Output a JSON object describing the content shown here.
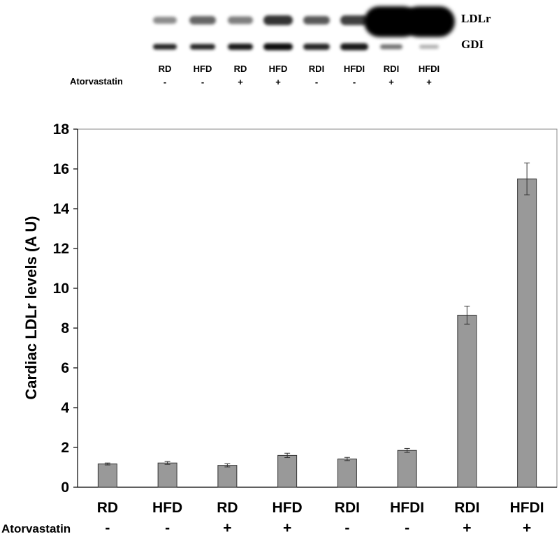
{
  "blot": {
    "band_labels": [
      "LDLr",
      "GDI"
    ],
    "lane_labels": [
      "RD",
      "HFD",
      "RD",
      "HFD",
      "RDI",
      "HFDI",
      "RDI",
      "HFDI"
    ],
    "treatment_label": "Atorvastatin",
    "treatment_signs": [
      "-",
      "-",
      "+",
      "+",
      "-",
      "-",
      "+",
      "+"
    ]
  },
  "chart_data": {
    "type": "bar",
    "categories": [
      "RD",
      "HFD",
      "RD",
      "HFD",
      "RDI",
      "HFDI",
      "RDI",
      "HFDI"
    ],
    "values": [
      1.17,
      1.22,
      1.1,
      1.6,
      1.42,
      1.85,
      8.65,
      15.5
    ],
    "errors": [
      0.05,
      0.07,
      0.08,
      0.11,
      0.08,
      0.1,
      0.45,
      0.8
    ],
    "treatment_label": "Atorvastatin",
    "treatment_signs": [
      "-",
      "-",
      "+",
      "+",
      "-",
      "-",
      "+",
      "+"
    ],
    "title": "",
    "xlabel": "",
    "ylabel": "Cardiac LDLr levels (A U)",
    "ylim": [
      0,
      18
    ],
    "yticks": [
      0,
      2,
      4,
      6,
      8,
      10,
      12,
      14,
      16,
      18
    ],
    "bar_color": "#999999",
    "grid": false
  }
}
